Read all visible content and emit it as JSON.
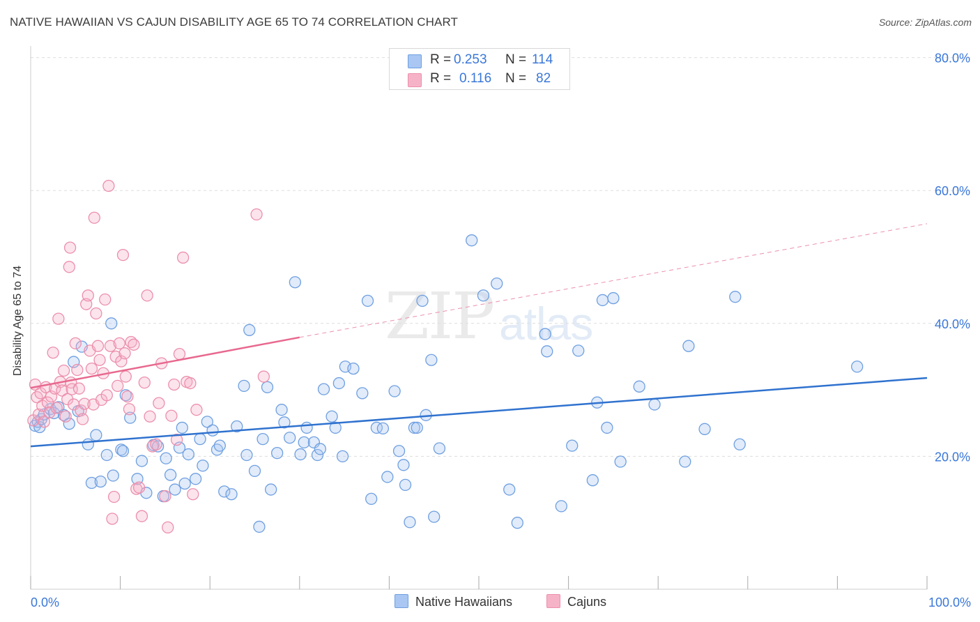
{
  "title": "NATIVE HAWAIIAN VS CAJUN DISABILITY AGE 65 TO 74 CORRELATION CHART",
  "source": "Source: ZipAtlas.com",
  "watermark": {
    "zip": "ZIP",
    "atlas": "atlas"
  },
  "legend": {
    "rows": [
      {
        "r_label": "R =",
        "r_value": "0.253",
        "n_label": "N =",
        "n_value": "114",
        "color": "#a9c7f2"
      },
      {
        "r_label": "R =",
        "r_value": "0.116",
        "n_label": "N =",
        "n_value": "82",
        "color": "#f6b3c8"
      }
    ]
  },
  "bottom_legend": {
    "series1": "Native Hawaiians",
    "series2": "Cajuns"
  },
  "colors": {
    "blue_fill": "#a9c7f2",
    "blue_stroke": "#6e9fe0",
    "blue_line": "#2f72cf",
    "pink_fill": "#f6b3c8",
    "pink_stroke": "#ec8fac",
    "pink_line": "#e8688f",
    "tick_label": "#3a77d8",
    "grid": "#dddddd"
  },
  "chart_data": {
    "type": "scatter",
    "title": "NATIVE HAWAIIAN VS CAJUN DISABILITY AGE 65 TO 74 CORRELATION CHART",
    "xlabel": "",
    "ylabel": "Disability Age 65 to 74",
    "xlim": [
      0,
      100
    ],
    "ylim": [
      0,
      82
    ],
    "x_tick_labels": [
      {
        "value": 0,
        "label": "0.0%"
      },
      {
        "value": 100,
        "label": "100.0%"
      }
    ],
    "y_tick_labels": [
      {
        "value": 20,
        "label": "20.0%"
      },
      {
        "value": 40,
        "label": "40.0%"
      },
      {
        "value": 60,
        "label": "60.0%"
      },
      {
        "value": 80,
        "label": "80.0%"
      }
    ],
    "legend_position": "top-center",
    "series": [
      {
        "name": "Native Hawaiians",
        "R": 0.253,
        "N": 114,
        "trend": {
          "x": [
            0,
            100
          ],
          "y": [
            21.5,
            31.8
          ],
          "style": "solid"
        },
        "points": [
          [
            0.5,
            24.6
          ],
          [
            0.8,
            25.2
          ],
          [
            1.0,
            24.4
          ],
          [
            1.2,
            25.6
          ],
          [
            1.5,
            26.3
          ],
          [
            2.2,
            27.1
          ],
          [
            2.6,
            26.5
          ],
          [
            3.1,
            27.4
          ],
          [
            3.7,
            26.2
          ],
          [
            4.3,
            24.9
          ],
          [
            4.8,
            34.2
          ],
          [
            5.3,
            26.8
          ],
          [
            5.7,
            36.5
          ],
          [
            6.4,
            21.8
          ],
          [
            7.3,
            23.2
          ],
          [
            6.8,
            16.0
          ],
          [
            7.8,
            16.2
          ],
          [
            8.5,
            20.2
          ],
          [
            9.0,
            40.0
          ],
          [
            9.2,
            17.1
          ],
          [
            10.1,
            21.0
          ],
          [
            10.3,
            20.8
          ],
          [
            10.6,
            29.2
          ],
          [
            11.1,
            25.8
          ],
          [
            11.9,
            16.6
          ],
          [
            12.4,
            19.3
          ],
          [
            12.9,
            14.5
          ],
          [
            13.7,
            21.7
          ],
          [
            14.2,
            21.5
          ],
          [
            14.8,
            14.0
          ],
          [
            15.1,
            19.7
          ],
          [
            15.6,
            17.2
          ],
          [
            16.1,
            15.0
          ],
          [
            16.6,
            21.3
          ],
          [
            16.9,
            24.3
          ],
          [
            17.2,
            15.9
          ],
          [
            17.6,
            20.3
          ],
          [
            18.4,
            16.6
          ],
          [
            18.9,
            22.6
          ],
          [
            19.2,
            18.6
          ],
          [
            19.7,
            25.2
          ],
          [
            20.3,
            23.9
          ],
          [
            20.8,
            21.0
          ],
          [
            21.1,
            21.6
          ],
          [
            21.6,
            14.7
          ],
          [
            22.4,
            14.3
          ],
          [
            23.0,
            24.5
          ],
          [
            23.8,
            30.6
          ],
          [
            24.1,
            20.2
          ],
          [
            24.4,
            39.0
          ],
          [
            25.0,
            17.8
          ],
          [
            25.5,
            9.4
          ],
          [
            25.9,
            22.6
          ],
          [
            26.4,
            30.4
          ],
          [
            26.8,
            15.0
          ],
          [
            27.5,
            20.5
          ],
          [
            28.0,
            27.0
          ],
          [
            28.3,
            25.1
          ],
          [
            28.9,
            22.8
          ],
          [
            29.5,
            46.2
          ],
          [
            30.1,
            20.3
          ],
          [
            30.5,
            22.1
          ],
          [
            30.8,
            24.3
          ],
          [
            31.6,
            22.1
          ],
          [
            32.0,
            20.2
          ],
          [
            32.3,
            21.1
          ],
          [
            32.7,
            30.1
          ],
          [
            33.6,
            26.0
          ],
          [
            34.0,
            24.3
          ],
          [
            34.4,
            31.0
          ],
          [
            34.8,
            20.0
          ],
          [
            35.1,
            33.5
          ],
          [
            36.0,
            33.2
          ],
          [
            37.0,
            29.5
          ],
          [
            37.6,
            43.4
          ],
          [
            38.0,
            13.6
          ],
          [
            38.6,
            24.3
          ],
          [
            39.3,
            24.2
          ],
          [
            39.8,
            16.9
          ],
          [
            40.6,
            29.8
          ],
          [
            41.1,
            20.8
          ],
          [
            41.6,
            18.7
          ],
          [
            41.8,
            15.7
          ],
          [
            42.3,
            10.1
          ],
          [
            42.8,
            24.3
          ],
          [
            43.1,
            24.3
          ],
          [
            43.7,
            43.4
          ],
          [
            44.1,
            26.2
          ],
          [
            44.7,
            34.5
          ],
          [
            45.0,
            10.9
          ],
          [
            45.6,
            21.2
          ],
          [
            49.2,
            52.5
          ],
          [
            50.5,
            44.2
          ],
          [
            52.0,
            46.0
          ],
          [
            53.4,
            15.0
          ],
          [
            54.3,
            10.0
          ],
          [
            57.4,
            38.4
          ],
          [
            57.6,
            35.8
          ],
          [
            59.2,
            12.5
          ],
          [
            60.4,
            21.6
          ],
          [
            61.1,
            35.9
          ],
          [
            62.7,
            16.4
          ],
          [
            63.2,
            28.1
          ],
          [
            63.8,
            43.5
          ],
          [
            64.3,
            24.3
          ],
          [
            65.0,
            43.8
          ],
          [
            65.8,
            19.2
          ],
          [
            67.9,
            30.5
          ],
          [
            69.6,
            27.8
          ],
          [
            73.0,
            19.2
          ],
          [
            73.4,
            36.6
          ],
          [
            75.2,
            24.1
          ],
          [
            78.6,
            44.0
          ],
          [
            79.1,
            21.8
          ],
          [
            92.2,
            33.5
          ]
        ]
      },
      {
        "name": "Cajuns",
        "R": 0.116,
        "N": 82,
        "trend": {
          "x": [
            0,
            30
          ],
          "y": [
            30.3,
            37.9
          ],
          "style": "solid",
          "extended": {
            "x": [
              30,
              100
            ],
            "y": [
              37.9,
              55.0
            ],
            "style": "dashed"
          }
        },
        "points": [
          [
            0.3,
            25.4
          ],
          [
            0.5,
            30.8
          ],
          [
            0.7,
            28.9
          ],
          [
            0.9,
            26.3
          ],
          [
            1.1,
            29.5
          ],
          [
            1.3,
            27.6
          ],
          [
            1.5,
            25.2
          ],
          [
            1.7,
            30.4
          ],
          [
            1.9,
            28.1
          ],
          [
            2.1,
            26.6
          ],
          [
            2.3,
            29.0
          ],
          [
            2.5,
            35.6
          ],
          [
            2.7,
            30.2
          ],
          [
            2.9,
            27.3
          ],
          [
            3.1,
            40.7
          ],
          [
            3.3,
            31.2
          ],
          [
            3.5,
            29.9
          ],
          [
            3.7,
            32.9
          ],
          [
            3.9,
            26.0
          ],
          [
            4.1,
            28.6
          ],
          [
            4.3,
            48.5
          ],
          [
            4.4,
            51.4
          ],
          [
            4.5,
            31.1
          ],
          [
            4.6,
            30.1
          ],
          [
            4.8,
            27.8
          ],
          [
            5.0,
            37.0
          ],
          [
            5.2,
            33.0
          ],
          [
            5.4,
            30.2
          ],
          [
            5.6,
            26.9
          ],
          [
            5.8,
            25.6
          ],
          [
            6.0,
            27.9
          ],
          [
            6.2,
            42.9
          ],
          [
            6.4,
            44.2
          ],
          [
            6.6,
            35.9
          ],
          [
            6.8,
            33.2
          ],
          [
            7.0,
            27.8
          ],
          [
            7.1,
            55.9
          ],
          [
            7.3,
            41.5
          ],
          [
            7.5,
            36.6
          ],
          [
            7.7,
            34.5
          ],
          [
            7.9,
            28.5
          ],
          [
            8.1,
            32.5
          ],
          [
            8.3,
            43.6
          ],
          [
            8.5,
            29.2
          ],
          [
            8.7,
            60.7
          ],
          [
            8.9,
            36.6
          ],
          [
            9.1,
            10.6
          ],
          [
            9.3,
            13.9
          ],
          [
            9.5,
            35.0
          ],
          [
            9.7,
            30.6
          ],
          [
            9.9,
            37.0
          ],
          [
            10.1,
            34.3
          ],
          [
            10.3,
            50.3
          ],
          [
            10.5,
            35.5
          ],
          [
            10.6,
            32.0
          ],
          [
            10.8,
            29.0
          ],
          [
            11.0,
            27.1
          ],
          [
            11.2,
            37.2
          ],
          [
            11.5,
            36.8
          ],
          [
            11.8,
            15.1
          ],
          [
            12.1,
            15.3
          ],
          [
            12.4,
            11.0
          ],
          [
            12.7,
            31.1
          ],
          [
            13.0,
            44.2
          ],
          [
            13.3,
            26.0
          ],
          [
            13.6,
            21.5
          ],
          [
            14.0,
            21.8
          ],
          [
            14.3,
            28.0
          ],
          [
            14.6,
            34.0
          ],
          [
            15.0,
            14.0
          ],
          [
            15.3,
            9.3
          ],
          [
            15.7,
            26.1
          ],
          [
            16.0,
            30.8
          ],
          [
            16.3,
            22.5
          ],
          [
            16.6,
            35.4
          ],
          [
            17.0,
            49.9
          ],
          [
            17.4,
            31.2
          ],
          [
            17.8,
            31.0
          ],
          [
            18.1,
            14.3
          ],
          [
            18.5,
            27.0
          ],
          [
            25.2,
            56.4
          ],
          [
            26.0,
            32.0
          ]
        ]
      }
    ]
  }
}
